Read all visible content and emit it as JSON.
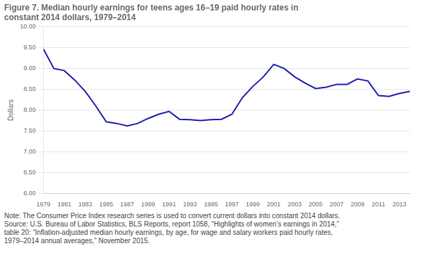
{
  "chart_data": {
    "type": "line",
    "title": [
      "Figure 7. Median hourly earnings for teens ages 16–19 paid hourly rates in",
      "constant 2014 dollars, 1979–2014"
    ],
    "ylabel": "Dollars",
    "notes": [
      "Note: The Consumer Price Index research series is used to convert current dollars into constant 2014 dollars.",
      "Source: U.S. Bureau of Labor Statistics, BLS Reports, report 1058, “Highlights of women’s earnings in 2014,”",
      "table 20: “Inflation-adjusted median hourly earnings, by age, for wage and salary workers paid hourly rates,",
      "1979–2014 annual averages,” November 2015."
    ],
    "x": [
      1979,
      1980,
      1981,
      1982,
      1983,
      1984,
      1985,
      1986,
      1987,
      1988,
      1989,
      1990,
      1991,
      1992,
      1993,
      1994,
      1995,
      1996,
      1997,
      1998,
      1999,
      2000,
      2001,
      2002,
      2003,
      2004,
      2005,
      2006,
      2007,
      2008,
      2009,
      2010,
      2011,
      2012,
      2013,
      2014
    ],
    "values": [
      9.47,
      9.0,
      8.95,
      8.72,
      8.45,
      8.1,
      7.72,
      7.68,
      7.62,
      7.68,
      7.8,
      7.9,
      7.97,
      7.78,
      7.77,
      7.75,
      7.77,
      7.78,
      7.9,
      8.3,
      8.57,
      8.8,
      9.1,
      9.0,
      8.8,
      8.65,
      8.52,
      8.55,
      8.62,
      8.62,
      8.75,
      8.7,
      8.35,
      8.33,
      8.4,
      8.45
    ],
    "color": "#1a1ab0",
    "xlim": [
      1979,
      2014
    ],
    "xticks": [
      1979,
      1981,
      1983,
      1985,
      1987,
      1989,
      1991,
      1993,
      1995,
      1997,
      1999,
      2001,
      2003,
      2005,
      2007,
      2009,
      2011,
      2013
    ],
    "ylim": [
      6.0,
      10.0
    ],
    "yticks": [
      {
        "value": 6.0,
        "label": "6.00"
      },
      {
        "value": 6.5,
        "label": "6.50"
      },
      {
        "value": 7.0,
        "label": "7.00"
      },
      {
        "value": 7.5,
        "label": "7.50"
      },
      {
        "value": 8.0,
        "label": "8.00"
      },
      {
        "value": 8.5,
        "label": "8.50"
      },
      {
        "value": 9.0,
        "label": "9.00"
      },
      {
        "value": 9.5,
        "label": "9.50"
      },
      {
        "value": 10.0,
        "label": "10.00"
      }
    ],
    "grid": "y"
  }
}
